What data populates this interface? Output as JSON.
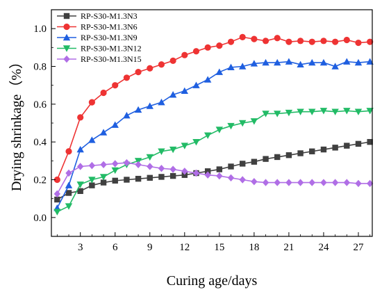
{
  "chart_data": {
    "type": "line",
    "xlabel": "Curing age/days",
    "ylabel": "Drying shrinkage（%）",
    "xlim": [
      0.5,
      28.2
    ],
    "ylim": [
      -0.1,
      1.1
    ],
    "xticks": [
      3,
      6,
      9,
      12,
      15,
      18,
      21,
      24,
      27
    ],
    "yticks": [
      0.0,
      0.2,
      0.4,
      0.6,
      0.8,
      1.0
    ],
    "ytick_labels": [
      "0.0",
      "0.2",
      "0.4",
      "0.6",
      "0.8",
      "1.0"
    ],
    "legend_position": "top-left",
    "grid": false,
    "x": [
      1,
      2,
      3,
      4,
      5,
      6,
      7,
      8,
      9,
      10,
      11,
      12,
      13,
      14,
      15,
      16,
      17,
      18,
      19,
      20,
      21,
      22,
      23,
      24,
      25,
      26,
      27,
      28
    ],
    "series": [
      {
        "name": "RP-S30-M1.3N3",
        "color": "#404040",
        "marker": "square",
        "values": [
          0.095,
          0.13,
          0.14,
          0.17,
          0.185,
          0.195,
          0.2,
          0.205,
          0.21,
          0.215,
          0.22,
          0.225,
          0.235,
          0.245,
          0.255,
          0.27,
          0.285,
          0.295,
          0.31,
          0.32,
          0.33,
          0.34,
          0.35,
          0.36,
          0.37,
          0.38,
          0.39,
          0.4
        ]
      },
      {
        "name": "RP-S30-M1.3N6",
        "color": "#ee3333",
        "marker": "circle",
        "values": [
          0.2,
          0.35,
          0.53,
          0.61,
          0.66,
          0.7,
          0.74,
          0.77,
          0.79,
          0.81,
          0.83,
          0.86,
          0.88,
          0.9,
          0.91,
          0.93,
          0.955,
          0.945,
          0.935,
          0.95,
          0.93,
          0.935,
          0.93,
          0.935,
          0.93,
          0.94,
          0.925,
          0.93
        ]
      },
      {
        "name": "RP-S30-M1.3N9",
        "color": "#1f5fe0",
        "marker": "triangle-up",
        "values": [
          0.05,
          0.17,
          0.36,
          0.41,
          0.45,
          0.49,
          0.54,
          0.57,
          0.59,
          0.61,
          0.65,
          0.67,
          0.7,
          0.73,
          0.77,
          0.795,
          0.8,
          0.815,
          0.82,
          0.82,
          0.825,
          0.81,
          0.82,
          0.82,
          0.8,
          0.825,
          0.82,
          0.825
        ]
      },
      {
        "name": "RP-S30-M1.3N12",
        "color": "#22bb66",
        "marker": "triangle-down",
        "values": [
          0.03,
          0.06,
          0.175,
          0.2,
          0.215,
          0.25,
          0.28,
          0.3,
          0.32,
          0.35,
          0.36,
          0.38,
          0.4,
          0.435,
          0.465,
          0.485,
          0.5,
          0.51,
          0.55,
          0.55,
          0.555,
          0.56,
          0.56,
          0.565,
          0.56,
          0.565,
          0.56,
          0.565
        ]
      },
      {
        "name": "RP-S30-M1.3N15",
        "color": "#b06ee6",
        "marker": "diamond",
        "values": [
          0.125,
          0.235,
          0.27,
          0.275,
          0.28,
          0.285,
          0.29,
          0.28,
          0.27,
          0.26,
          0.255,
          0.245,
          0.235,
          0.225,
          0.22,
          0.21,
          0.2,
          0.19,
          0.185,
          0.185,
          0.185,
          0.185,
          0.185,
          0.185,
          0.185,
          0.185,
          0.18,
          0.18
        ]
      }
    ]
  }
}
